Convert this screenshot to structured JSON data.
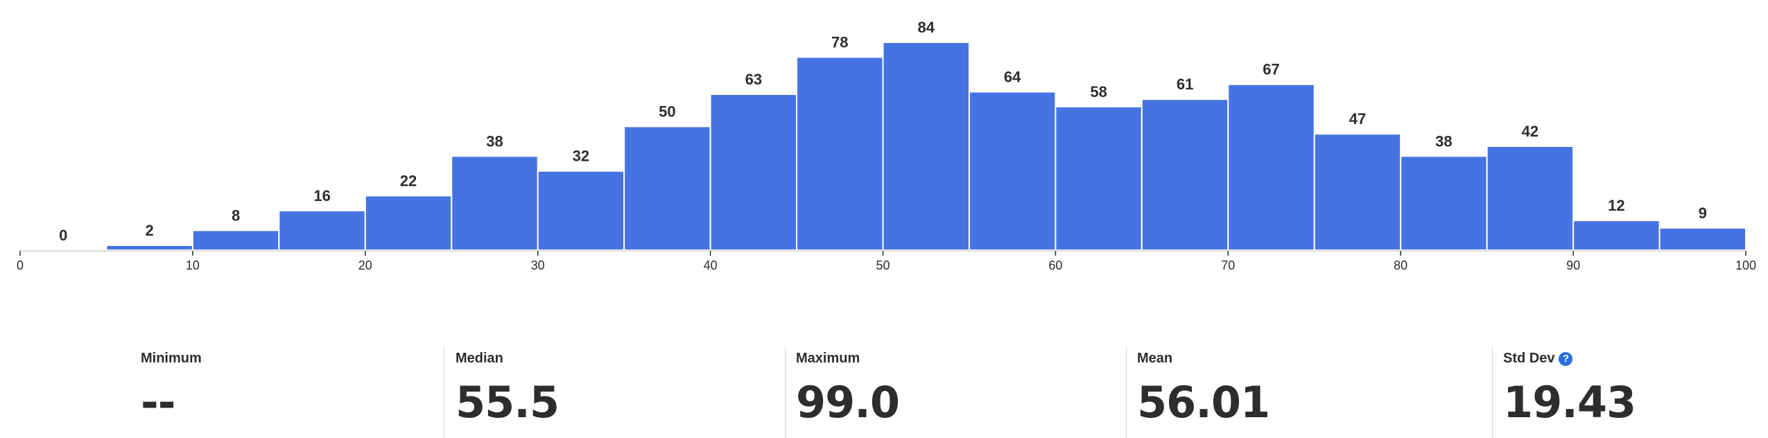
{
  "chart_data": {
    "type": "bar",
    "bin_width": 5,
    "x_range": [
      0,
      100
    ],
    "x_ticks": [
      0,
      10,
      20,
      30,
      40,
      50,
      60,
      70,
      80,
      90,
      100
    ],
    "bins": [
      {
        "start": 0,
        "end": 5,
        "count": 0
      },
      {
        "start": 5,
        "end": 10,
        "count": 2
      },
      {
        "start": 10,
        "end": 15,
        "count": 8
      },
      {
        "start": 15,
        "end": 20,
        "count": 16
      },
      {
        "start": 20,
        "end": 25,
        "count": 22
      },
      {
        "start": 25,
        "end": 30,
        "count": 38
      },
      {
        "start": 30,
        "end": 35,
        "count": 32
      },
      {
        "start": 35,
        "end": 40,
        "count": 50
      },
      {
        "start": 40,
        "end": 45,
        "count": 63
      },
      {
        "start": 45,
        "end": 50,
        "count": 78
      },
      {
        "start": 50,
        "end": 55,
        "count": 84
      },
      {
        "start": 55,
        "end": 60,
        "count": 64
      },
      {
        "start": 60,
        "end": 65,
        "count": 58
      },
      {
        "start": 65,
        "end": 70,
        "count": 61
      },
      {
        "start": 70,
        "end": 75,
        "count": 67
      },
      {
        "start": 75,
        "end": 80,
        "count": 47
      },
      {
        "start": 80,
        "end": 85,
        "count": 38
      },
      {
        "start": 85,
        "end": 90,
        "count": 42
      },
      {
        "start": 90,
        "end": 95,
        "count": 12
      },
      {
        "start": 95,
        "end": 100,
        "count": 9
      }
    ],
    "ylim": [
      0,
      84
    ],
    "grid": false,
    "title": "",
    "xlabel": "",
    "ylabel": "",
    "colors": {
      "bar": "#4673e2",
      "bar_border": "#ffffff",
      "text": "#2d2d2d"
    }
  },
  "stats": [
    {
      "key": "minimum",
      "label": "Minimum",
      "value": "--",
      "help": false
    },
    {
      "key": "median",
      "label": "Median",
      "value": "55.5",
      "help": false
    },
    {
      "key": "maximum",
      "label": "Maximum",
      "value": "99.0",
      "help": false
    },
    {
      "key": "mean",
      "label": "Mean",
      "value": "56.01",
      "help": false
    },
    {
      "key": "std-dev",
      "label": "Std Dev",
      "value": "19.43",
      "help": true,
      "help_icon": "question-circle-icon",
      "help_glyph": "?"
    }
  ],
  "colors": {
    "help_icon": "#2a6fdb",
    "divider": "#d6d6d6"
  }
}
